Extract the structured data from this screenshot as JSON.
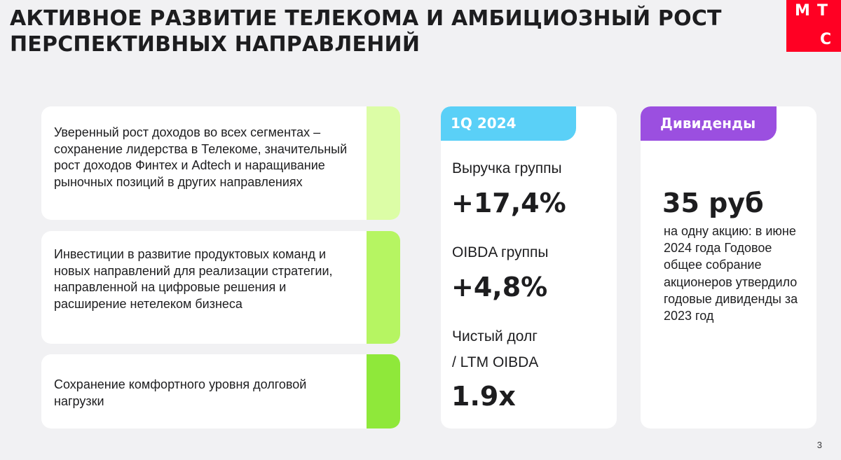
{
  "title": "АКТИВНОЕ РАЗВИТИЕ ТЕЛЕКОМА И АМБИЦИОЗНЫЙ РОСТ ПЕРСПЕКТИВНЫХ НАПРАВЛЕНИЙ",
  "logo": {
    "letter1": "М",
    "letter2": "Т",
    "letter3": "С",
    "color": "#ff0023"
  },
  "cards": [
    {
      "text": "Уверенный рост доходов во всех сегментах – сохранение лидерства в Телекоме, значительный рост доходов Финтех и Adtech и наращивание рыночных позиций в других направлениях",
      "accent": "#dcfda6"
    },
    {
      "text": "Инвестиции в развитие продуктовых команд и новых направлений для реализации стратегии, направленной на цифровые решения и расширение нетелеком бизнеса",
      "accent": "#b6f562"
    },
    {
      "text": "Сохранение комфортного уровня долговой нагрузки",
      "accent": "#8fe83a"
    }
  ],
  "metrics": {
    "tag": "1Q 2024",
    "tag_color": "#5ad0f7",
    "revenue_label": "Выручка группы",
    "revenue_value": "+17,4%",
    "oibda_label": "OIBDA группы",
    "oibda_value": "+4,8%",
    "debt_label_1": "Чистый долг",
    "debt_label_2": "/ LTM OIBDA",
    "debt_value": "1.9x"
  },
  "dividends": {
    "tag": "Дивиденды",
    "tag_color": "#9b4fe0",
    "value": "35 руб",
    "text": "на одну акцию: в июне 2024 года Годовое общее собрание акционеров утвердило годовые дивиденды за 2023 год"
  },
  "page_number": "3"
}
